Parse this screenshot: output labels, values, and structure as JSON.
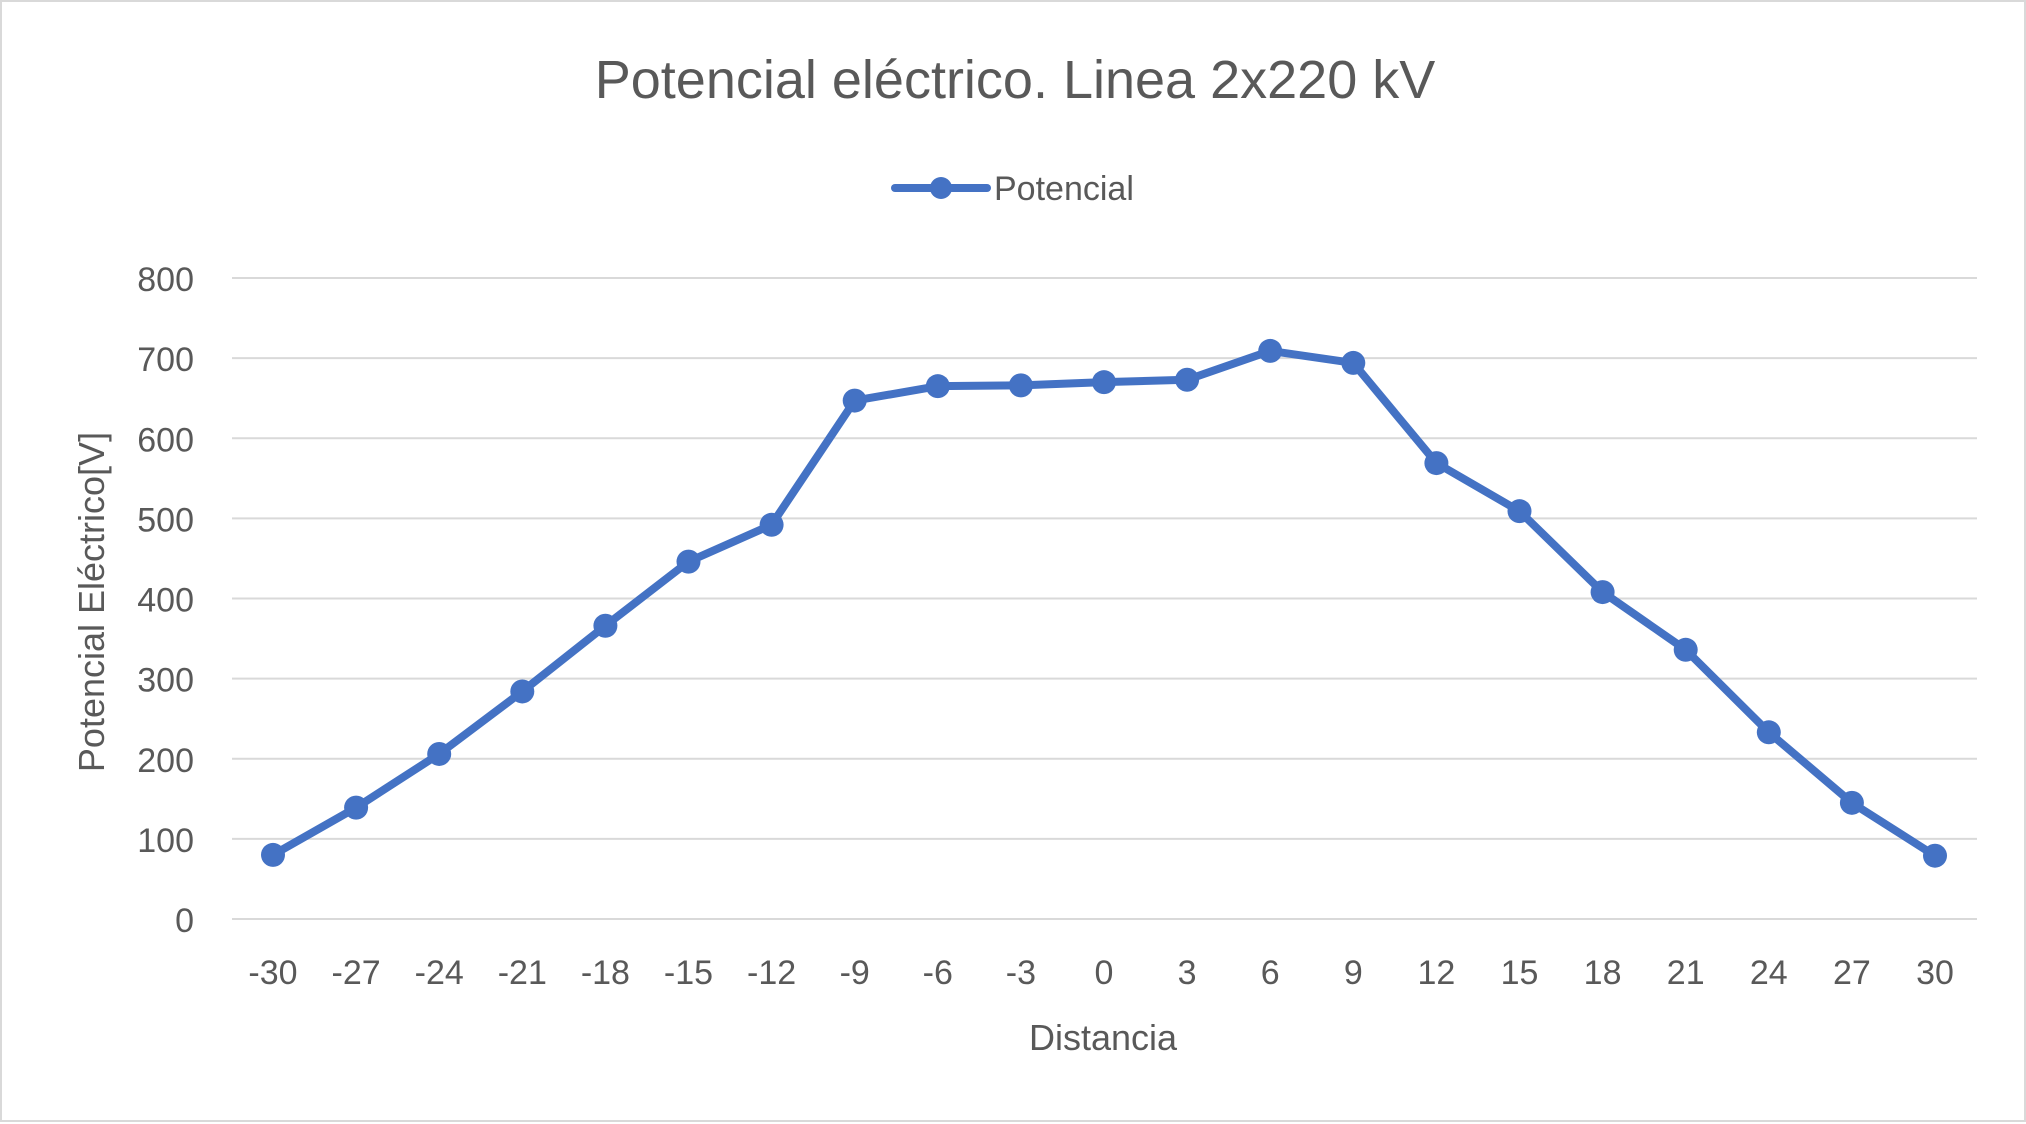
{
  "chart_data": {
    "type": "line",
    "title": "Potencial eléctrico. Linea 2x220 kV",
    "xlabel": "Distancia",
    "ylabel": "Potencial Eléctrico[V]",
    "categories": [
      "-30",
      "-27",
      "-24",
      "-21",
      "-18",
      "-15",
      "-12",
      "-9",
      "-6",
      "-3",
      "0",
      "3",
      "6",
      "9",
      "12",
      "15",
      "18",
      "21",
      "24",
      "27",
      "30"
    ],
    "series": [
      {
        "name": "Potencial",
        "color": "#4472C4",
        "values": [
          80,
          139,
          206,
          284,
          366,
          446,
          492,
          647,
          665,
          666,
          670,
          673,
          709,
          694,
          569,
          509,
          408,
          336,
          233,
          145,
          79
        ]
      }
    ],
    "ylim": [
      0,
      800
    ],
    "yticks": [
      0,
      100,
      200,
      300,
      400,
      500,
      600,
      700,
      800
    ],
    "grid": true,
    "legend_position": "top-center",
    "colors": {
      "gridline": "#d9d9d9",
      "text": "#595959",
      "series": "#4472C4"
    }
  }
}
